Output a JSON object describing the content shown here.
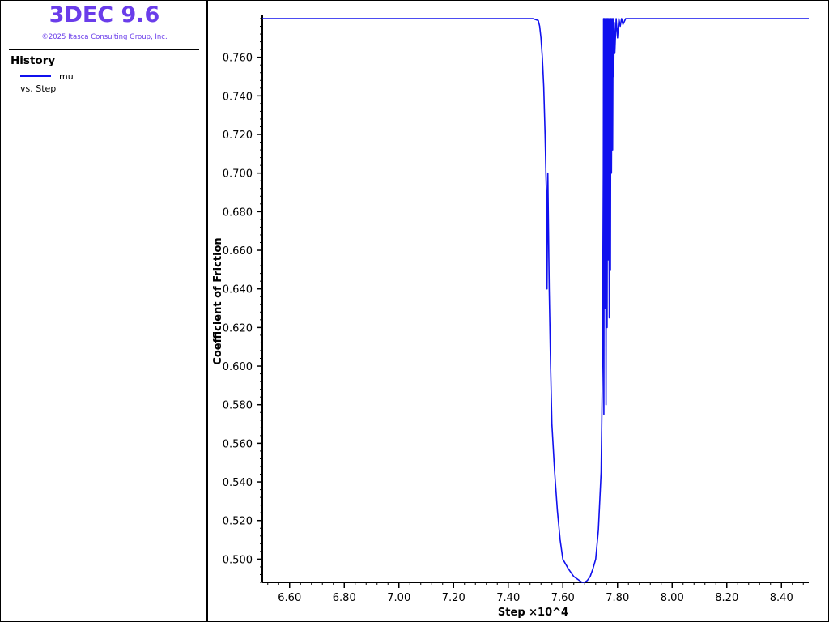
{
  "app": {
    "title": "3DEC 9.6",
    "copyright": "©2025 Itasca Consulting Group, Inc.",
    "title_color": "#6a3dea"
  },
  "legend": {
    "heading": "History",
    "series_label": "mu",
    "versus_label": "vs. Step",
    "series_color": "#1010ee"
  },
  "chart_data": {
    "type": "line",
    "xlabel": "Step ×10^4",
    "ylabel": "Coefficient of Friction",
    "xlim": [
      6.5,
      8.5
    ],
    "ylim": [
      0.488,
      0.78
    ],
    "x_ticks": [
      6.6,
      6.8,
      7.0,
      7.2,
      7.4,
      7.6,
      7.8,
      8.0,
      8.2,
      8.4
    ],
    "x_tick_labels": [
      "6.60",
      "6.80",
      "7.00",
      "7.20",
      "7.40",
      "7.60",
      "7.80",
      "8.00",
      "8.20",
      "8.40"
    ],
    "y_ticks": [
      0.5,
      0.52,
      0.54,
      0.56,
      0.58,
      0.6,
      0.62,
      0.64,
      0.66,
      0.68,
      0.7,
      0.72,
      0.74,
      0.76
    ],
    "y_tick_labels": [
      "0.500",
      "0.520",
      "0.540",
      "0.560",
      "0.580",
      "0.600",
      "0.620",
      "0.640",
      "0.660",
      "0.680",
      "0.700",
      "0.720",
      "0.740",
      "0.760"
    ],
    "grid": false,
    "series": [
      {
        "name": "mu",
        "color": "#1010ee",
        "x": [
          6.5,
          7.49,
          7.51,
          7.515,
          7.52,
          7.525,
          7.53,
          7.535,
          7.538,
          7.54,
          7.542,
          7.545,
          7.55,
          7.555,
          7.56,
          7.57,
          7.58,
          7.59,
          7.6,
          7.62,
          7.64,
          7.66,
          7.67,
          7.68,
          7.69,
          7.7,
          7.71,
          7.72,
          7.73,
          7.74,
          7.745,
          7.748,
          7.749,
          7.75,
          7.752,
          7.754,
          7.756,
          7.758,
          7.76,
          7.762,
          7.764,
          7.766,
          7.768,
          7.77,
          7.772,
          7.774,
          7.776,
          7.778,
          7.78,
          7.782,
          7.784,
          7.786,
          7.788,
          7.79,
          7.795,
          7.8,
          7.805,
          7.81,
          7.815,
          7.82,
          7.83,
          7.85,
          8.5
        ],
        "y": [
          0.78,
          0.78,
          0.779,
          0.776,
          0.77,
          0.76,
          0.745,
          0.72,
          0.7,
          0.69,
          0.64,
          0.7,
          0.64,
          0.6,
          0.57,
          0.545,
          0.525,
          0.51,
          0.5,
          0.495,
          0.491,
          0.489,
          0.488,
          0.488,
          0.489,
          0.491,
          0.495,
          0.5,
          0.515,
          0.545,
          0.6,
          0.7,
          0.78,
          0.575,
          0.78,
          0.63,
          0.78,
          0.58,
          0.78,
          0.62,
          0.78,
          0.655,
          0.78,
          0.625,
          0.78,
          0.65,
          0.78,
          0.7,
          0.78,
          0.712,
          0.78,
          0.75,
          0.778,
          0.762,
          0.78,
          0.77,
          0.78,
          0.776,
          0.78,
          0.777,
          0.78,
          0.78,
          0.78
        ]
      }
    ]
  }
}
